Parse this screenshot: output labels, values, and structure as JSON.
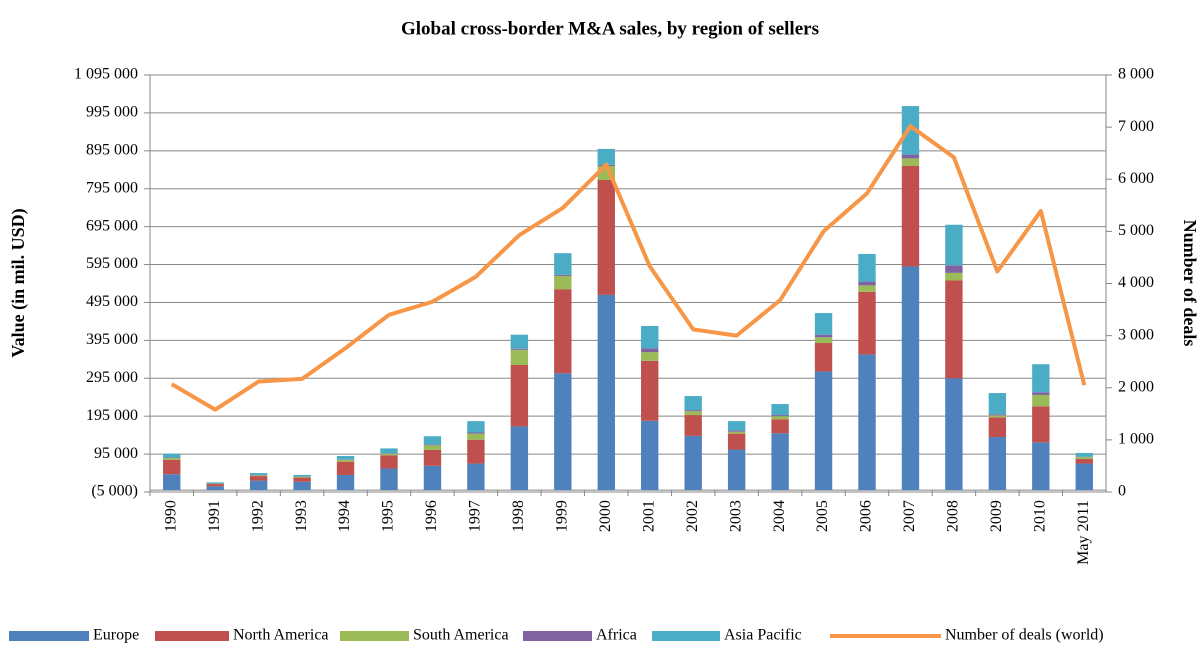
{
  "chart_data": {
    "type": "bar",
    "stacked": true,
    "title": "Global cross-border M&A sales, by region of sellers",
    "ylabel": "Value (in mil. USD)",
    "y2label": "Number of deals",
    "categories": [
      "1990",
      "1991",
      "1992",
      "1993",
      "1994",
      "1995",
      "1996",
      "1997",
      "1998",
      "1999",
      "2000",
      "2001",
      "2002",
      "2003",
      "2004",
      "2005",
      "2006",
      "2007",
      "2008",
      "2009",
      "2010",
      "May 2011"
    ],
    "series": [
      {
        "name": "Europe",
        "color": "#4f81bd",
        "values": [
          42000,
          10000,
          25000,
          22000,
          40000,
          57000,
          64000,
          70000,
          168000,
          308000,
          515000,
          183000,
          143000,
          107000,
          150000,
          313000,
          358000,
          590000,
          295000,
          140000,
          126000,
          70000
        ]
      },
      {
        "name": "North America",
        "color": "#c0504d",
        "values": [
          38000,
          6000,
          12000,
          11000,
          35000,
          35000,
          42000,
          63000,
          162000,
          222000,
          303000,
          158000,
          55000,
          42000,
          37000,
          75000,
          165000,
          265000,
          258000,
          52000,
          95000,
          12000
        ]
      },
      {
        "name": "South America",
        "color": "#9bbb59",
        "values": [
          5000,
          1000,
          2000,
          2000,
          5000,
          4000,
          12000,
          16000,
          40000,
          35000,
          37000,
          23000,
          10000,
          5000,
          8000,
          15000,
          17000,
          20000,
          20000,
          5000,
          30000,
          5000
        ]
      },
      {
        "name": "Africa",
        "color": "#8064a2",
        "values": [
          1000,
          500,
          1000,
          500,
          1000,
          1000,
          2000,
          3000,
          3000,
          3000,
          3000,
          10000,
          3000,
          3000,
          3000,
          7000,
          10000,
          10000,
          20000,
          3000,
          7000,
          1000
        ]
      },
      {
        "name": "Asia Pacific",
        "color": "#4bacc6",
        "values": [
          10000,
          3000,
          5000,
          4500,
          9000,
          13000,
          22000,
          30000,
          37000,
          57000,
          42000,
          59000,
          37000,
          25000,
          29000,
          57000,
          73000,
          128000,
          107000,
          56000,
          74000,
          10000
        ]
      },
      {
        "name": "Number of deals (world)",
        "color": "#f79646",
        "type": "line",
        "axis": "y2",
        "values": [
          2070,
          1580,
          2120,
          2170,
          2760,
          3400,
          3650,
          4130,
          4930,
          5450,
          6280,
          4330,
          3120,
          3000,
          3680,
          5000,
          5730,
          7020,
          6420,
          4230,
          5390,
          2050
        ]
      }
    ],
    "ylim": [
      -5000,
      1095000
    ],
    "yticks": [
      {
        "value": -5000,
        "label": "(5 000)"
      },
      {
        "value": 95000,
        "label": "95 000"
      },
      {
        "value": 195000,
        "label": "195 000"
      },
      {
        "value": 295000,
        "label": "295 000"
      },
      {
        "value": 395000,
        "label": "395 000"
      },
      {
        "value": 495000,
        "label": "495 000"
      },
      {
        "value": 595000,
        "label": "595 000"
      },
      {
        "value": 695000,
        "label": "695 000"
      },
      {
        "value": 795000,
        "label": "795 000"
      },
      {
        "value": 895000,
        "label": "895 000"
      },
      {
        "value": 995000,
        "label": "995 000"
      },
      {
        "value": 1095000,
        "label": "1 095 000"
      }
    ],
    "y2lim": [
      0,
      8000
    ],
    "y2ticks": [
      0,
      {
        "value": 1000,
        "label": "1 000"
      },
      {
        "value": 2000,
        "label": "2 000"
      },
      {
        "value": 3000,
        "label": "3 000"
      },
      {
        "value": 4000,
        "label": "4 000"
      },
      {
        "value": 5000,
        "label": "5 000"
      },
      {
        "value": 6000,
        "label": "6 000"
      },
      {
        "value": 7000,
        "label": "7 000"
      },
      {
        "value": 8000,
        "label": "8 000"
      }
    ],
    "grid": true,
    "legend": "bottom"
  }
}
